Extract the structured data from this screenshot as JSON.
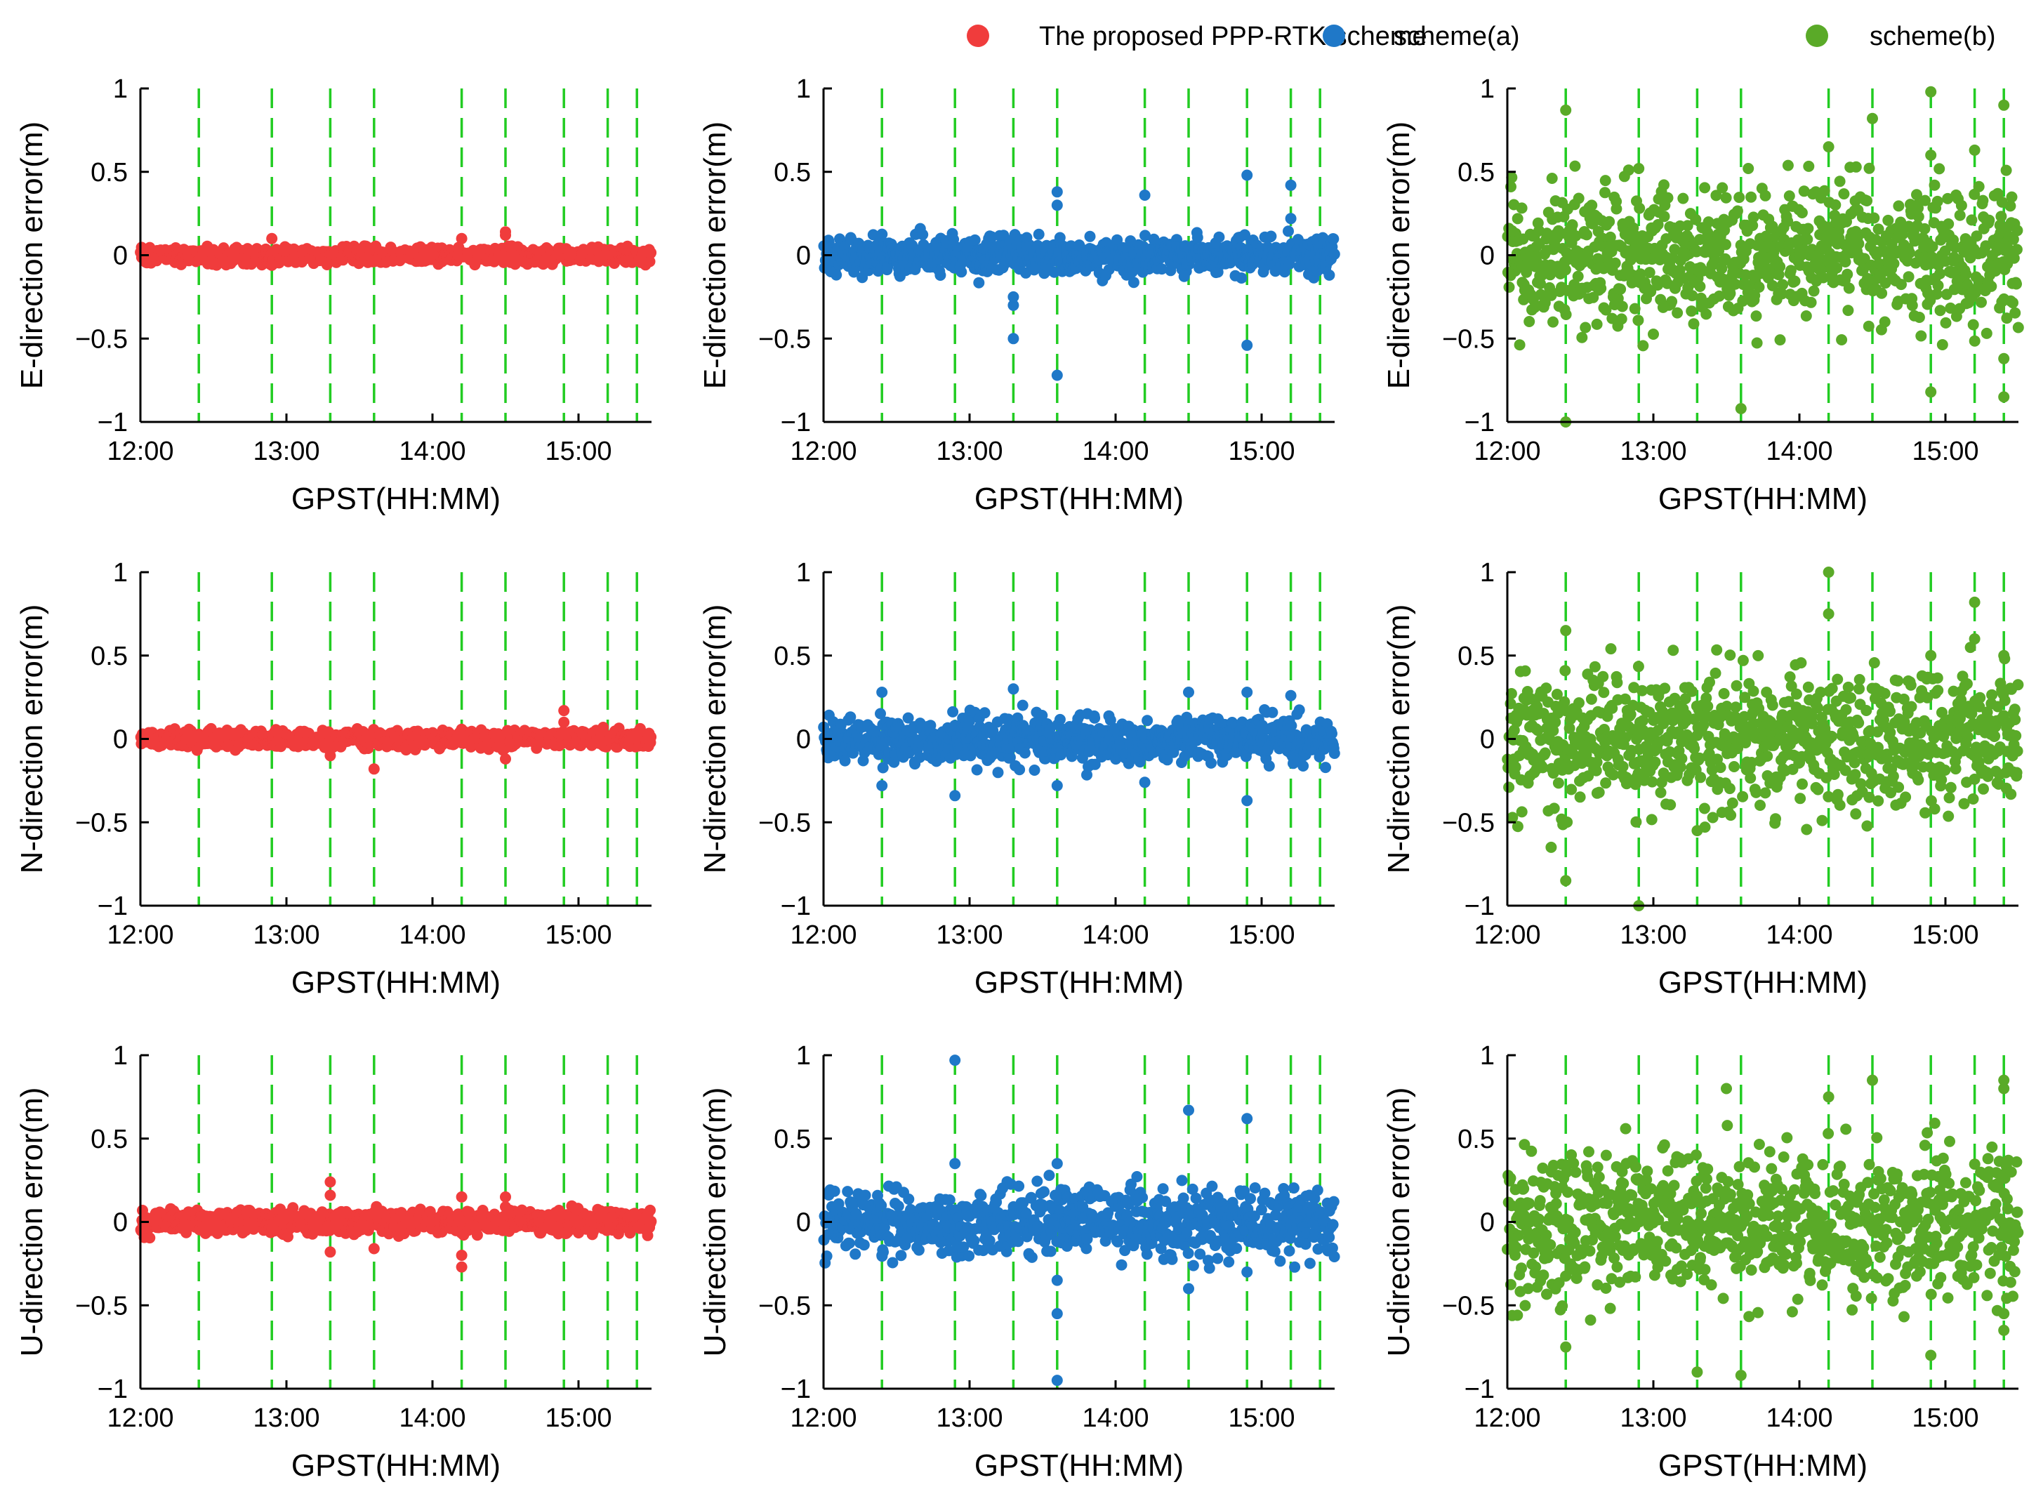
{
  "figure_title": "",
  "legend": [
    {
      "name": "The proposed PPP-RTK scheme",
      "color": "#f03c3c"
    },
    {
      "name": "scheme(a)",
      "color": "#1f78c8"
    },
    {
      "name": "scheme(b)",
      "color": "#5aaa28"
    }
  ],
  "chart_data": {
    "type": "scatter",
    "x_unit": "hours (GPST)",
    "xlim": [
      12.0,
      15.5
    ],
    "ylim": [
      -1,
      1
    ],
    "x_ticks": [
      12,
      13,
      14,
      15
    ],
    "x_tick_labels": [
      "12:00",
      "13:00",
      "14:00",
      "15:00"
    ],
    "y_ticks": [
      -1,
      -0.5,
      0,
      0.5,
      1
    ],
    "y_tick_labels": [
      "−1",
      "−0.5",
      "0",
      "0.5",
      "1"
    ],
    "xlabel": "GPST(HH:MM)",
    "rows": [
      "E",
      "N",
      "U"
    ],
    "ylabels": [
      "E-direction error(m)",
      "N-direction error(m)",
      "U-direction error(m)"
    ],
    "vlines": {
      "x": [
        12.4,
        12.9,
        13.3,
        13.6,
        14.2,
        14.5,
        14.9,
        15.2,
        15.4
      ],
      "color": "#22cc22",
      "style": "dashed"
    },
    "panels": [
      {
        "row": "E",
        "series": "The proposed PPP-RTK scheme",
        "color": "#f03c3c",
        "noise_sd": 0.025,
        "clip": 0.06,
        "n_points": 800,
        "outliers": [
          [
            12.9,
            0.1
          ],
          [
            14.2,
            0.1
          ],
          [
            14.5,
            0.14
          ],
          [
            14.5,
            0.12
          ],
          [
            12.9,
            -0.06
          ]
        ]
      },
      {
        "row": "E",
        "series": "scheme(a)",
        "color": "#1f78c8",
        "noise_sd": 0.055,
        "clip": 0.17,
        "n_points": 800,
        "outliers": [
          [
            13.3,
            -0.5
          ],
          [
            13.3,
            -0.3
          ],
          [
            13.3,
            -0.25
          ],
          [
            13.6,
            -0.72
          ],
          [
            13.6,
            0.38
          ],
          [
            13.6,
            0.3
          ],
          [
            14.2,
            0.36
          ],
          [
            14.9,
            0.48
          ],
          [
            14.9,
            -0.54
          ],
          [
            15.2,
            0.42
          ],
          [
            15.2,
            0.22
          ],
          [
            12.8,
            -0.12
          ]
        ]
      },
      {
        "row": "E",
        "series": "scheme(b)",
        "color": "#5aaa28",
        "noise_sd": 0.2,
        "clip": 0.55,
        "n_points": 900,
        "outliers": [
          [
            12.4,
            0.87
          ],
          [
            12.4,
            -1.0
          ],
          [
            13.6,
            -0.92
          ],
          [
            14.2,
            0.65
          ],
          [
            14.5,
            0.82
          ],
          [
            14.9,
            0.98
          ],
          [
            14.9,
            0.6
          ],
          [
            15.2,
            0.63
          ],
          [
            15.4,
            0.9
          ],
          [
            15.4,
            -0.85
          ],
          [
            15.4,
            -0.62
          ],
          [
            14.9,
            -0.82
          ],
          [
            12.9,
            0.52
          ]
        ]
      },
      {
        "row": "N",
        "series": "The proposed PPP-RTK scheme",
        "color": "#f03c3c",
        "noise_sd": 0.025,
        "clip": 0.07,
        "n_points": 800,
        "outliers": [
          [
            13.6,
            -0.18
          ],
          [
            14.9,
            0.17
          ],
          [
            14.5,
            -0.12
          ],
          [
            13.3,
            -0.1
          ],
          [
            14.9,
            0.1
          ]
        ]
      },
      {
        "row": "N",
        "series": "scheme(a)",
        "color": "#1f78c8",
        "noise_sd": 0.07,
        "clip": 0.22,
        "n_points": 800,
        "outliers": [
          [
            12.4,
            -0.28
          ],
          [
            12.4,
            0.28
          ],
          [
            12.9,
            -0.34
          ],
          [
            13.3,
            0.3
          ],
          [
            13.6,
            -0.28
          ],
          [
            14.2,
            -0.26
          ],
          [
            14.5,
            0.28
          ],
          [
            14.9,
            -0.37
          ],
          [
            14.9,
            0.28
          ],
          [
            15.2,
            0.26
          ]
        ]
      },
      {
        "row": "N",
        "series": "scheme(b)",
        "color": "#5aaa28",
        "noise_sd": 0.2,
        "clip": 0.55,
        "n_points": 900,
        "outliers": [
          [
            12.4,
            0.65
          ],
          [
            12.4,
            -0.85
          ],
          [
            12.9,
            -1.0
          ],
          [
            14.2,
            1.0
          ],
          [
            14.2,
            0.75
          ],
          [
            15.2,
            0.82
          ],
          [
            15.2,
            0.6
          ],
          [
            14.9,
            0.5
          ],
          [
            15.4,
            0.5
          ],
          [
            12.3,
            -0.65
          ],
          [
            13.3,
            -0.55
          ]
        ]
      },
      {
        "row": "U",
        "series": "The proposed PPP-RTK scheme",
        "color": "#f03c3c",
        "noise_sd": 0.035,
        "clip": 0.1,
        "n_points": 850,
        "outliers": [
          [
            13.3,
            0.24
          ],
          [
            13.3,
            0.16
          ],
          [
            13.3,
            -0.18
          ],
          [
            14.2,
            0.15
          ],
          [
            14.2,
            -0.27
          ],
          [
            14.2,
            -0.2
          ],
          [
            13.6,
            -0.16
          ],
          [
            14.5,
            0.15
          ]
        ]
      },
      {
        "row": "U",
        "series": "scheme(a)",
        "color": "#1f78c8",
        "noise_sd": 0.1,
        "clip": 0.3,
        "n_points": 800,
        "outliers": [
          [
            12.9,
            0.97
          ],
          [
            12.9,
            0.35
          ],
          [
            13.6,
            -0.95
          ],
          [
            13.6,
            -0.55
          ],
          [
            13.6,
            -0.35
          ],
          [
            13.6,
            0.35
          ],
          [
            14.5,
            0.67
          ],
          [
            14.9,
            0.62
          ],
          [
            14.5,
            -0.4
          ],
          [
            14.9,
            -0.3
          ],
          [
            12.4,
            -0.2
          ]
        ]
      },
      {
        "row": "U",
        "series": "scheme(b)",
        "color": "#5aaa28",
        "noise_sd": 0.22,
        "clip": 0.6,
        "n_points": 900,
        "outliers": [
          [
            13.5,
            0.8
          ],
          [
            13.6,
            -0.92
          ],
          [
            14.2,
            0.75
          ],
          [
            14.5,
            0.85
          ],
          [
            15.4,
            0.85
          ],
          [
            15.4,
            0.8
          ],
          [
            15.4,
            -0.65
          ],
          [
            15.4,
            -0.55
          ],
          [
            12.4,
            -0.75
          ],
          [
            14.9,
            -0.8
          ],
          [
            13.3,
            -0.9
          ]
        ]
      }
    ]
  }
}
